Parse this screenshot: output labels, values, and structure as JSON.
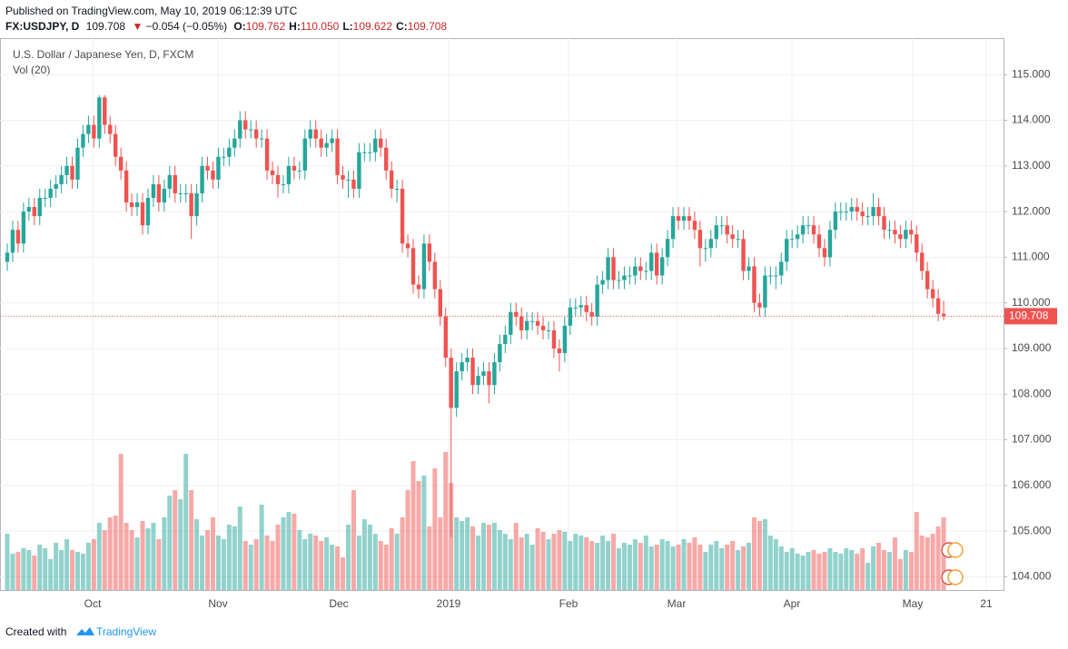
{
  "header": {
    "published": "Published on TradingView.com, May 10, 2019 06:12:39 UTC",
    "symbol": "FX:USDJPY, D",
    "last": "109.708",
    "arrow": "▼",
    "change": "−0.054 (−0.05%)",
    "ohlc": [
      {
        "key": "O:",
        "value": "109.762"
      },
      {
        "key": "H:",
        "value": "110.050"
      },
      {
        "key": "L:",
        "value": "109.622"
      },
      {
        "key": "C:",
        "value": "109.708"
      }
    ]
  },
  "footer": {
    "created": "Created with",
    "brand": "TradingView"
  },
  "chart_data": {
    "type": "candlestick",
    "title": "U.S. Dollar / Japanese Yen, D, FXCM",
    "volume_title": "Vol (20)",
    "up_color": "#26a69a",
    "down_color": "#ef5350",
    "grid": true,
    "x_labels": [
      "Oct",
      "Nov",
      "Dec",
      "2019",
      "Feb",
      "Mar",
      "Apr",
      "May",
      "21"
    ],
    "ylim": [
      103.71,
      115.8
    ],
    "yticks": [
      {
        "value": 104,
        "label": "104.000"
      },
      {
        "value": 105,
        "label": "105.000"
      },
      {
        "value": 106,
        "label": "106.000"
      },
      {
        "value": 107,
        "label": "107.000"
      },
      {
        "value": 108,
        "label": "108.000"
      },
      {
        "value": 109,
        "label": "109.000"
      },
      {
        "value": 110,
        "label": "110.000"
      },
      {
        "value": 111,
        "label": "111.000"
      },
      {
        "value": 112,
        "label": "112.000"
      },
      {
        "value": 113,
        "label": "113.000"
      },
      {
        "value": 114,
        "label": "114.000"
      },
      {
        "value": 115,
        "label": "115.000"
      }
    ],
    "open": [
      110.9,
      111.1,
      111.6,
      111.3,
      112.0,
      112.1,
      111.9,
      112.3,
      112.3,
      112.5,
      112.6,
      112.8,
      113.0,
      112.7,
      113.4,
      113.7,
      113.9,
      113.6,
      114.5,
      113.9,
      113.7,
      113.2,
      112.9,
      112.2,
      112.1,
      112.2,
      111.7,
      112.3,
      112.6,
      112.2,
      112.5,
      112.8,
      112.4,
      112.4,
      112.4,
      111.9,
      112.4,
      113.0,
      112.9,
      112.7,
      113.2,
      113.2,
      113.4,
      113.6,
      114.0,
      113.8,
      113.8,
      113.6,
      113.6,
      112.9,
      112.8,
      112.6,
      112.6,
      113.0,
      112.9,
      112.9,
      113.6,
      113.8,
      113.6,
      113.4,
      113.5,
      113.6,
      112.8,
      112.7,
      112.7,
      112.5,
      113.3,
      113.3,
      113.3,
      113.6,
      113.4,
      112.9,
      112.5,
      112.5,
      111.3,
      111.2,
      110.4,
      110.3,
      111.3,
      110.9,
      110.3,
      109.7,
      108.8,
      107.7,
      108.5,
      108.7,
      108.8,
      108.2,
      108.4,
      108.5,
      108.2,
      108.7,
      109.1,
      109.3,
      109.8,
      109.7,
      109.4,
      109.6,
      109.6,
      109.5,
      109.4,
      109.4,
      109.0,
      108.9,
      109.5,
      109.9,
      109.9,
      109.95,
      109.8,
      109.7,
      110.4,
      110.5,
      111.0,
      110.5,
      110.5,
      110.6,
      110.6,
      110.8,
      110.7,
      110.7,
      111.1,
      110.6,
      111.0,
      111.4,
      111.9,
      111.8,
      111.9,
      111.8,
      111.6,
      111.2,
      111.2,
      111.4,
      111.7,
      111.7,
      111.5,
      111.4,
      111.4,
      110.7,
      110.8,
      110.0,
      109.9,
      110.6,
      110.6,
      110.6,
      110.9,
      111.4,
      111.4,
      111.5,
      111.7,
      111.7,
      111.5,
      111.2,
      111.0,
      111.6,
      112.0,
      112.0,
      112.0,
      112.1,
      112.0,
      111.9,
      111.9,
      112.1,
      111.9,
      111.6,
      111.6,
      111.5,
      111.4,
      111.6,
      111.5,
      111.1,
      110.7,
      110.3,
      110.1,
      109.762
    ],
    "high": [
      111.3,
      111.8,
      111.8,
      112.2,
      112.3,
      112.3,
      112.5,
      112.5,
      112.7,
      112.8,
      113.0,
      113.2,
      113.2,
      113.6,
      113.9,
      114.1,
      114.1,
      114.55,
      114.55,
      114.1,
      113.9,
      113.4,
      113.1,
      112.4,
      112.4,
      112.4,
      112.5,
      112.8,
      112.8,
      112.7,
      113.0,
      113.0,
      112.6,
      112.6,
      112.6,
      112.6,
      113.2,
      113.2,
      113.1,
      113.4,
      113.4,
      113.6,
      113.8,
      114.2,
      114.2,
      114.0,
      114.0,
      113.8,
      113.8,
      113.1,
      113.0,
      112.8,
      113.2,
      113.2,
      113.1,
      113.8,
      114.0,
      114.0,
      113.8,
      113.7,
      113.8,
      113.8,
      113.0,
      112.9,
      112.9,
      113.5,
      113.5,
      113.5,
      113.8,
      113.8,
      113.6,
      113.1,
      112.7,
      112.7,
      111.5,
      111.4,
      110.6,
      111.5,
      111.5,
      111.1,
      110.5,
      109.9,
      109.0,
      108.7,
      108.9,
      109.0,
      109.0,
      108.6,
      108.7,
      108.7,
      108.9,
      109.3,
      109.5,
      110.0,
      110.0,
      109.9,
      109.8,
      109.8,
      109.8,
      109.7,
      109.6,
      109.6,
      109.2,
      109.7,
      110.1,
      110.1,
      110.15,
      110.15,
      110.0,
      110.6,
      110.7,
      111.2,
      111.2,
      110.7,
      110.8,
      110.8,
      111.0,
      111.0,
      110.9,
      111.3,
      111.3,
      111.2,
      111.6,
      112.1,
      112.1,
      112.1,
      112.1,
      112.0,
      111.8,
      111.4,
      111.6,
      111.9,
      111.9,
      111.9,
      111.7,
      111.6,
      111.6,
      111.0,
      111.0,
      110.2,
      110.8,
      110.8,
      110.8,
      111.1,
      111.6,
      111.6,
      111.7,
      111.9,
      111.9,
      111.9,
      111.7,
      111.4,
      111.8,
      112.2,
      112.2,
      112.2,
      112.3,
      112.3,
      112.2,
      112.1,
      112.4,
      112.3,
      112.1,
      111.8,
      111.8,
      111.7,
      111.8,
      111.8,
      111.7,
      111.3,
      110.9,
      110.5,
      110.3,
      110.05
    ],
    "low": [
      110.7,
      110.9,
      111.1,
      111.1,
      111.8,
      111.7,
      111.7,
      112.1,
      112.1,
      112.3,
      112.4,
      112.6,
      112.5,
      112.5,
      113.2,
      113.5,
      113.4,
      113.4,
      113.7,
      113.5,
      113.0,
      112.7,
      112.0,
      111.9,
      111.9,
      111.5,
      111.5,
      112.1,
      112.0,
      112.0,
      112.3,
      112.2,
      112.2,
      112.2,
      111.4,
      111.7,
      112.2,
      112.7,
      112.5,
      112.5,
      113.0,
      113.0,
      113.2,
      113.4,
      113.6,
      113.6,
      113.4,
      113.4,
      112.7,
      112.6,
      112.3,
      112.4,
      112.4,
      112.7,
      112.7,
      112.7,
      113.4,
      113.4,
      113.2,
      113.2,
      113.3,
      112.6,
      112.5,
      112.3,
      112.3,
      112.3,
      113.1,
      113.1,
      113.1,
      113.2,
      112.7,
      112.3,
      112.2,
      111.1,
      111.0,
      110.2,
      110.1,
      110.1,
      110.7,
      110.1,
      109.5,
      108.6,
      104.87,
      107.5,
      108.3,
      108.5,
      108.0,
      108.0,
      108.2,
      107.8,
      108.0,
      108.5,
      108.9,
      109.1,
      109.5,
      109.2,
      109.2,
      109.4,
      109.3,
      109.2,
      109.2,
      108.8,
      108.5,
      108.7,
      109.3,
      109.7,
      109.7,
      109.6,
      109.5,
      109.5,
      110.2,
      110.3,
      110.3,
      110.3,
      110.3,
      110.4,
      110.4,
      110.5,
      110.5,
      110.5,
      110.4,
      110.4,
      110.8,
      111.2,
      111.6,
      111.6,
      111.6,
      111.4,
      110.8,
      110.9,
      111.0,
      111.2,
      111.5,
      111.3,
      111.2,
      111.2,
      110.5,
      110.5,
      109.8,
      109.7,
      109.7,
      110.4,
      110.3,
      110.4,
      110.7,
      111.2,
      111.2,
      111.3,
      111.5,
      111.3,
      111.0,
      110.8,
      110.8,
      111.4,
      111.8,
      111.8,
      111.8,
      111.8,
      111.7,
      111.7,
      111.7,
      111.7,
      111.4,
      111.4,
      111.3,
      111.2,
      111.2,
      111.3,
      110.9,
      110.5,
      110.1,
      109.9,
      109.6,
      109.622
    ],
    "close": [
      111.1,
      111.6,
      111.3,
      112.0,
      112.1,
      111.9,
      112.3,
      112.3,
      112.5,
      112.6,
      112.8,
      113.0,
      112.7,
      113.4,
      113.7,
      113.9,
      113.6,
      114.5,
      113.9,
      113.7,
      113.2,
      112.9,
      112.2,
      112.1,
      112.2,
      111.7,
      112.3,
      112.6,
      112.2,
      112.5,
      112.8,
      112.4,
      112.4,
      112.4,
      111.9,
      112.4,
      113.0,
      112.9,
      112.7,
      113.2,
      113.2,
      113.4,
      113.6,
      114.0,
      113.8,
      113.8,
      113.6,
      113.6,
      112.9,
      112.8,
      112.6,
      112.6,
      113.0,
      112.9,
      112.9,
      113.6,
      113.8,
      113.6,
      113.4,
      113.5,
      113.6,
      112.8,
      112.7,
      112.7,
      112.5,
      113.3,
      113.3,
      113.3,
      113.6,
      113.4,
      112.9,
      112.5,
      112.5,
      111.3,
      111.2,
      110.4,
      110.3,
      111.3,
      110.9,
      110.3,
      109.7,
      108.8,
      107.7,
      108.5,
      108.7,
      108.8,
      108.2,
      108.4,
      108.5,
      108.2,
      108.7,
      109.1,
      109.3,
      109.8,
      109.7,
      109.4,
      109.6,
      109.6,
      109.5,
      109.4,
      109.4,
      109.0,
      108.9,
      109.5,
      109.9,
      109.9,
      109.95,
      109.8,
      109.7,
      110.4,
      110.5,
      111.0,
      110.5,
      110.5,
      110.6,
      110.6,
      110.8,
      110.7,
      110.7,
      111.1,
      110.6,
      111.0,
      111.4,
      111.9,
      111.8,
      111.9,
      111.8,
      111.6,
      111.2,
      111.2,
      111.4,
      111.7,
      111.7,
      111.5,
      111.4,
      111.4,
      110.7,
      110.8,
      110.0,
      109.9,
      110.6,
      110.6,
      110.6,
      110.9,
      111.4,
      111.4,
      111.5,
      111.7,
      111.7,
      111.5,
      111.2,
      111.0,
      111.6,
      112.0,
      112.0,
      112.0,
      112.1,
      112.0,
      111.9,
      111.9,
      112.1,
      111.9,
      111.6,
      111.6,
      111.5,
      111.4,
      111.6,
      111.5,
      111.1,
      110.7,
      110.3,
      110.1,
      109.76,
      109.708
    ],
    "volume": [
      62,
      40,
      42,
      46,
      44,
      38,
      50,
      46,
      34,
      52,
      44,
      56,
      44,
      42,
      40,
      52,
      56,
      74,
      66,
      80,
      82,
      150,
      74,
      66,
      58,
      76,
      68,
      74,
      56,
      80,
      104,
      110,
      100,
      150,
      110,
      78,
      60,
      66,
      80,
      60,
      56,
      72,
      70,
      92,
      54,
      50,
      56,
      94,
      60,
      54,
      72,
      80,
      86,
      84,
      66,
      56,
      62,
      60,
      54,
      58,
      50,
      48,
      36,
      72,
      110,
      60,
      78,
      72,
      62,
      54,
      50,
      68,
      62,
      80,
      110,
      142,
      120,
      126,
      70,
      134,
      80,
      152,
      118,
      80,
      76,
      80,
      70,
      60,
      74,
      72,
      74,
      66,
      62,
      56,
      74,
      58,
      62,
      50,
      68,
      64,
      56,
      62,
      66,
      64,
      54,
      62,
      60,
      58,
      54,
      52,
      60,
      54,
      62,
      46,
      52,
      50,
      56,
      52,
      60,
      48,
      50,
      56,
      54,
      48,
      50,
      56,
      52,
      58,
      50,
      42,
      50,
      54,
      46,
      50,
      54,
      44,
      48,
      52,
      80,
      76,
      78,
      60,
      56,
      48,
      42,
      46,
      40,
      38,
      42,
      44,
      40,
      42,
      46,
      42,
      40,
      46,
      44,
      40,
      46,
      30,
      48,
      52,
      44,
      42,
      58,
      34,
      44,
      42,
      86,
      60,
      58,
      62,
      70,
      80
    ]
  }
}
